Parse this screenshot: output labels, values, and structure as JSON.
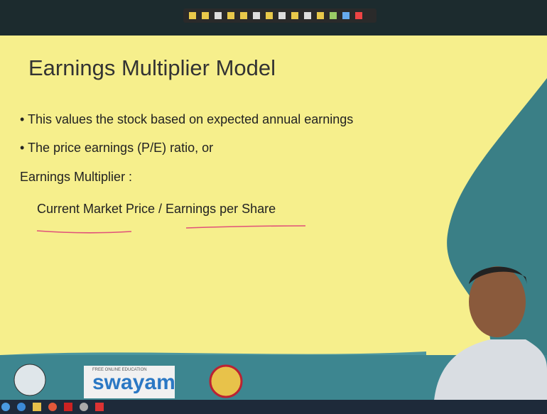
{
  "slide": {
    "title": "Earnings Multiplier Model",
    "bullets": [
      "This values the stock based on expected annual earnings",
      "The price earnings (P/E) ratio, or"
    ],
    "lines": [
      "Earnings Multiplier :",
      "Current Market Price / Earnings per Share"
    ]
  },
  "logo": {
    "tagline": "FREE ONLINE EDUCATION",
    "name": "swayam"
  }
}
